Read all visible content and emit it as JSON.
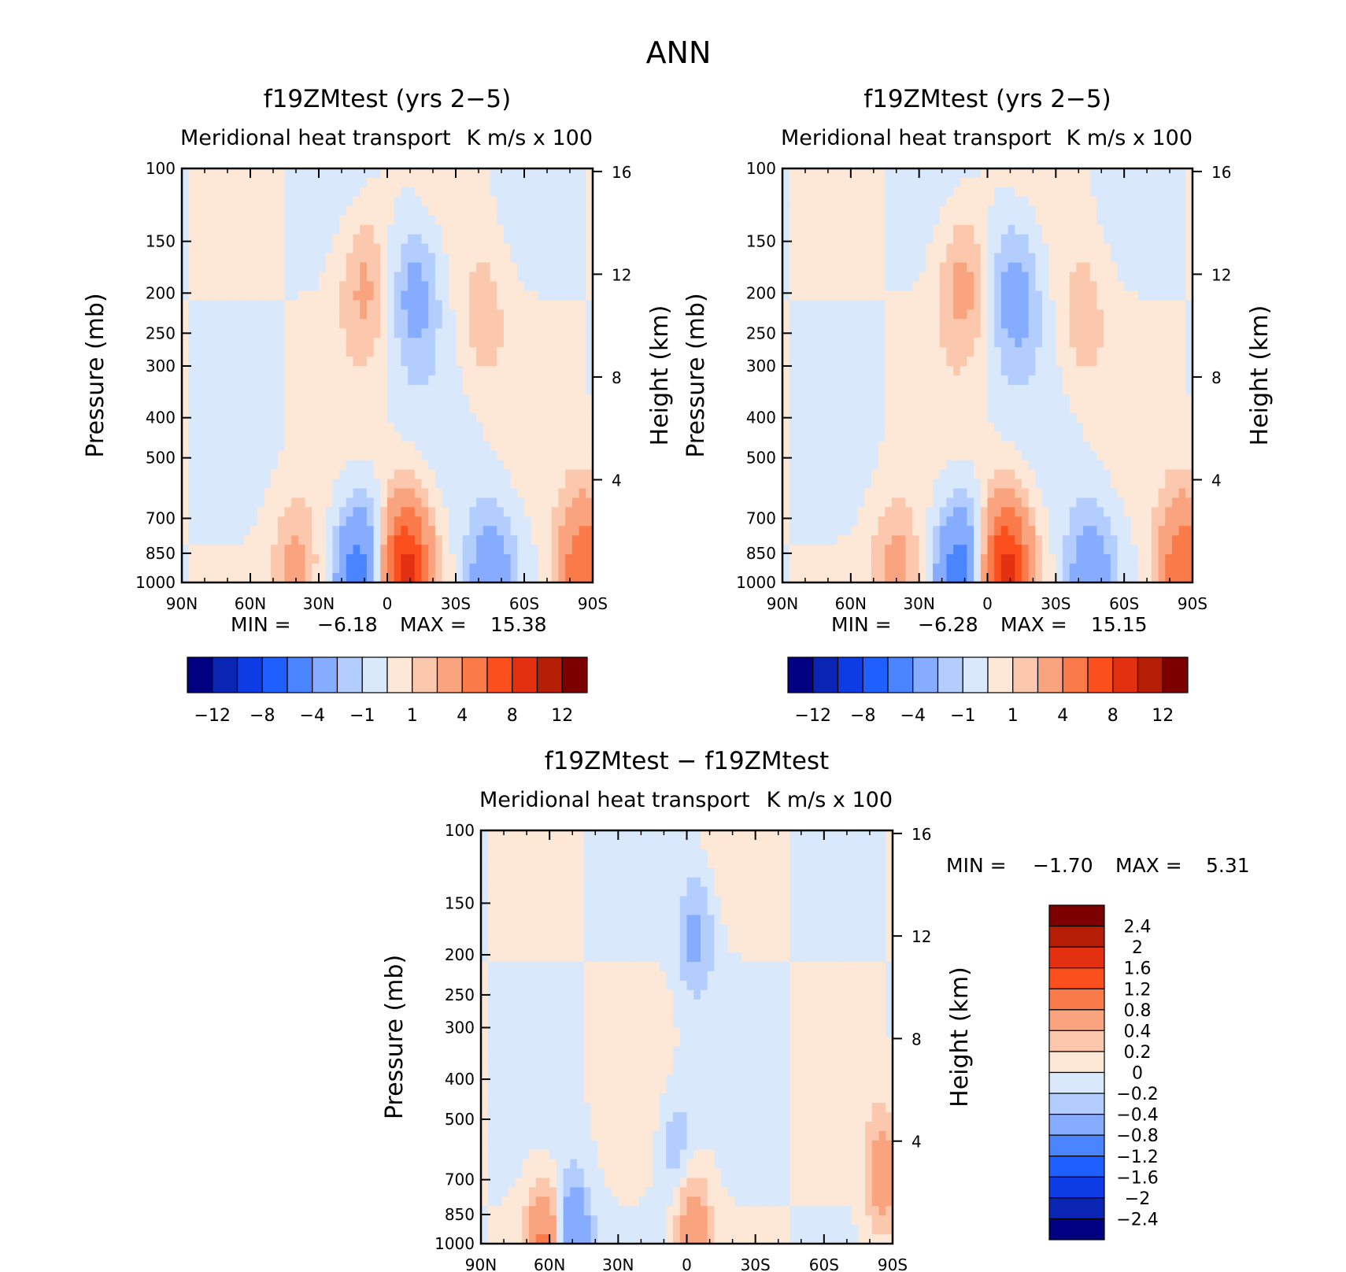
{
  "page_title": "ANN",
  "x_ticks": [
    "90N",
    "60N",
    "30N",
    "0",
    "30S",
    "60S",
    "90S"
  ],
  "y_ticks": [
    "100",
    "150",
    "200",
    "250",
    "300",
    "400",
    "500",
    "700",
    "850",
    "1000"
  ],
  "y_tick_values": [
    100,
    150,
    200,
    250,
    300,
    400,
    500,
    700,
    850,
    1000
  ],
  "height_ticks": [
    "16",
    "12",
    "8",
    "4"
  ],
  "height_tick_values": [
    16,
    12,
    8,
    4
  ],
  "colors": {
    "main": [
      "#000080",
      "#0a25b4",
      "#0d3ce4",
      "#1f5eff",
      "#4a84ff",
      "#85acff",
      "#b4cdff",
      "#d9e8fb",
      "#fde7d6",
      "#fbc8ae",
      "#f9a37f",
      "#fb7a4a",
      "#fb4f1d",
      "#e33010",
      "#b51d05",
      "#7c0000"
    ],
    "diff": [
      "#000080",
      "#0a25b4",
      "#0d3ce4",
      "#1f5eff",
      "#4a84ff",
      "#85acff",
      "#b4cdff",
      "#d9e8fb",
      "#fde7d6",
      "#fbc8ae",
      "#f9a37f",
      "#fb7a4a",
      "#fb4f1d",
      "#e33010",
      "#b51d05",
      "#7c0000"
    ]
  },
  "chart_data": [
    {
      "type": "contour",
      "title": "f19ZMtest (yrs 2−5)",
      "subtitle_left": "Meridional heat transport",
      "subtitle_right": "K m/s x 100",
      "ylabel": "Pressure (mb)",
      "ylabel_right": "Height (km)",
      "xlim": [
        "90N",
        "90S"
      ],
      "ylim": [
        1000,
        100
      ],
      "y_scale": "log",
      "min_label": "MIN =",
      "min": "−6.18",
      "max_label": "MAX =",
      "max": "15.38",
      "levels": [
        -12,
        -10,
        -8,
        -6,
        -4,
        -2,
        -1,
        0,
        1,
        2,
        4,
        6,
        8,
        10,
        12
      ],
      "colorbar_labels": [
        "−12",
        "−8",
        "−4",
        "−1",
        "1",
        "4",
        "8",
        "12"
      ],
      "features": [
        {
          "lat": 40,
          "p": 960,
          "value": 2.5
        },
        {
          "lat": 12,
          "p": 960,
          "value": -5.0
        },
        {
          "lat": -8,
          "p": 960,
          "value": 9.0
        },
        {
          "lat": -45,
          "p": 980,
          "value": -3.5
        },
        {
          "lat": 10,
          "p": 190,
          "value": 2.3
        },
        {
          "lat": -12,
          "p": 200,
          "value": -2.6
        },
        {
          "lat": -42,
          "p": 230,
          "value": 1.6
        },
        {
          "lat": -86,
          "p": 950,
          "value": 6.0
        }
      ]
    },
    {
      "type": "contour",
      "title": "f19ZMtest (yrs 2−5)",
      "subtitle_left": "Meridional heat transport",
      "subtitle_right": "K m/s x 100",
      "ylabel": "Pressure (mb)",
      "ylabel_right": "Height (km)",
      "xlim": [
        "90N",
        "90S"
      ],
      "ylim": [
        1000,
        100
      ],
      "y_scale": "log",
      "min_label": "MIN =",
      "min": "−6.28",
      "max_label": "MAX =",
      "max": "15.15",
      "levels": [
        -12,
        -10,
        -8,
        -6,
        -4,
        -2,
        -1,
        0,
        1,
        2,
        4,
        6,
        8,
        10,
        12
      ],
      "colorbar_labels": [
        "−12",
        "−8",
        "−4",
        "−1",
        "1",
        "4",
        "8",
        "12"
      ],
      "features": [
        {
          "lat": 40,
          "p": 960,
          "value": 2.7
        },
        {
          "lat": 12,
          "p": 960,
          "value": -5.2
        },
        {
          "lat": -8,
          "p": 960,
          "value": 9.0
        },
        {
          "lat": -45,
          "p": 980,
          "value": -3.5
        },
        {
          "lat": 11,
          "p": 190,
          "value": 2.5
        },
        {
          "lat": -12,
          "p": 200,
          "value": -2.8
        },
        {
          "lat": -42,
          "p": 230,
          "value": 1.6
        },
        {
          "lat": -86,
          "p": 950,
          "value": 6.0
        }
      ]
    },
    {
      "type": "contour",
      "title": "f19ZMtest − f19ZMtest",
      "subtitle_left": "Meridional heat transport",
      "subtitle_right": "K m/s x 100",
      "ylabel": "Pressure (mb)",
      "ylabel_right": "Height (km)",
      "xlim": [
        "90N",
        "90S"
      ],
      "ylim": [
        1000,
        100
      ],
      "y_scale": "log",
      "min_label": "MIN =",
      "min": "−1.70",
      "max_label": "MAX =",
      "max": "5.31",
      "levels": [
        -2.4,
        -2,
        -1.6,
        -1.2,
        -0.8,
        -0.4,
        -0.2,
        0,
        0.2,
        0.4,
        0.8,
        1.2,
        1.6,
        2,
        2.4
      ],
      "colorbar_labels": [
        "2.4",
        "2",
        "1.6",
        "1.2",
        "0.8",
        "0.4",
        "0.2",
        "0",
        "−0.2",
        "−0.4",
        "−0.8",
        "−1.2",
        "−1.6",
        "−2",
        "−2.4"
      ],
      "features": [
        {
          "lat": -2,
          "p": 900,
          "value": 0.7
        },
        {
          "lat": -4,
          "p": 180,
          "value": -0.5
        },
        {
          "lat": 4,
          "p": 600,
          "value": -0.4
        },
        {
          "lat": 50,
          "p": 980,
          "value": -0.9
        },
        {
          "lat": 62,
          "p": 995,
          "value": 0.9
        },
        {
          "lat": -86,
          "p": 680,
          "value": 0.6
        }
      ]
    }
  ]
}
